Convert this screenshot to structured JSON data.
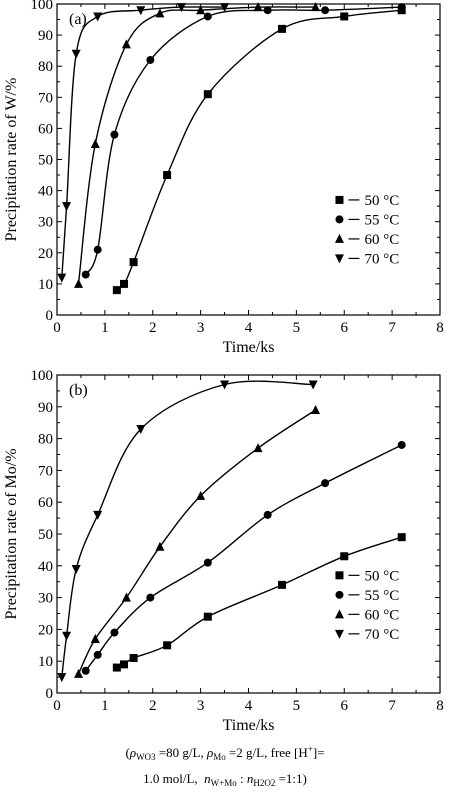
{
  "chart_data": [
    {
      "type": "scatter",
      "panel_label": "(a)",
      "xlabel": "Time/ks",
      "ylabel": "Precipitation rate of W/%",
      "xlim": [
        0,
        8
      ],
      "ylim": [
        0,
        100
      ],
      "xticks": [
        "0",
        "1",
        "2",
        "3",
        "4",
        "5",
        "6",
        "7",
        "8"
      ],
      "yticks": [
        "0",
        "10",
        "20",
        "30",
        "40",
        "50",
        "60",
        "70",
        "80",
        "90",
        "100"
      ],
      "grid": false,
      "legend": "bottom-right",
      "series": [
        {
          "name": "50 °C",
          "marker": "square",
          "x": [
            1.25,
            1.4,
            1.6,
            2.3,
            3.15,
            4.7,
            6.0,
            7.2
          ],
          "y": [
            8,
            10,
            17,
            45,
            71,
            92,
            96,
            98
          ]
        },
        {
          "name": "55 °C",
          "marker": "circle",
          "x": [
            0.6,
            0.85,
            1.2,
            1.95,
            3.15,
            4.4,
            5.6,
            7.2
          ],
          "y": [
            13,
            21,
            58,
            82,
            96,
            98,
            98,
            99
          ]
        },
        {
          "name": "60 °C",
          "marker": "triangle-up",
          "x": [
            0.45,
            0.8,
            1.45,
            2.15,
            3.0,
            4.2,
            5.4
          ],
          "y": [
            10,
            55,
            87,
            97,
            98,
            99,
            99
          ]
        },
        {
          "name": "70 °C",
          "marker": "triangle-down",
          "x": [
            0.1,
            0.2,
            0.4,
            0.85,
            1.75,
            2.6,
            3.5
          ],
          "y": [
            12,
            35,
            84,
            96,
            98,
            99,
            99
          ]
        }
      ]
    },
    {
      "type": "scatter",
      "panel_label": "(b)",
      "xlabel": "Time/ks",
      "ylabel": "Precipitation rate of Mo/%",
      "xlim": [
        0,
        8
      ],
      "ylim": [
        0,
        100
      ],
      "xticks": [
        "0",
        "1",
        "2",
        "3",
        "4",
        "5",
        "6",
        "7",
        "8"
      ],
      "yticks": [
        "0",
        "10",
        "20",
        "30",
        "40",
        "50",
        "60",
        "70",
        "80",
        "90",
        "100"
      ],
      "grid": false,
      "legend": "bottom-right",
      "series": [
        {
          "name": "50 °C",
          "marker": "square",
          "x": [
            1.25,
            1.4,
            1.6,
            2.3,
            3.15,
            4.7,
            6.0,
            7.2
          ],
          "y": [
            8,
            9,
            11,
            15,
            24,
            34,
            43,
            49
          ]
        },
        {
          "name": "55 °C",
          "marker": "circle",
          "x": [
            0.6,
            0.85,
            1.2,
            1.95,
            3.15,
            4.4,
            5.6,
            7.2
          ],
          "y": [
            7,
            12,
            19,
            30,
            41,
            56,
            66,
            78
          ]
        },
        {
          "name": "60 °C",
          "marker": "triangle-up",
          "x": [
            0.45,
            0.8,
            1.45,
            2.15,
            3.0,
            4.2,
            5.4
          ],
          "y": [
            6,
            17,
            30,
            46,
            62,
            77,
            89
          ]
        },
        {
          "name": "70 °C",
          "marker": "triangle-down",
          "x": [
            0.1,
            0.2,
            0.4,
            0.85,
            1.75,
            3.5,
            5.35
          ],
          "y": [
            5,
            18,
            39,
            56,
            83,
            97,
            97
          ]
        }
      ]
    }
  ],
  "caption": {
    "open_paren": "(",
    "rho": "ρ",
    "wo": "WO",
    "three": "3",
    "wo_value": "=80 g/L,",
    "mo": "Mo",
    "mo_value": "=2 g/L,",
    "free": "free [H",
    "plus": "+",
    "free_close": "]=",
    "h_value": "1.0 mol/L,",
    "n": "n",
    "wmo": "W+Mo",
    "colon": ":",
    "h2o2_a": "H",
    "two": "2",
    "h2o2_b": "O",
    "ratio": "=1:1)"
  }
}
